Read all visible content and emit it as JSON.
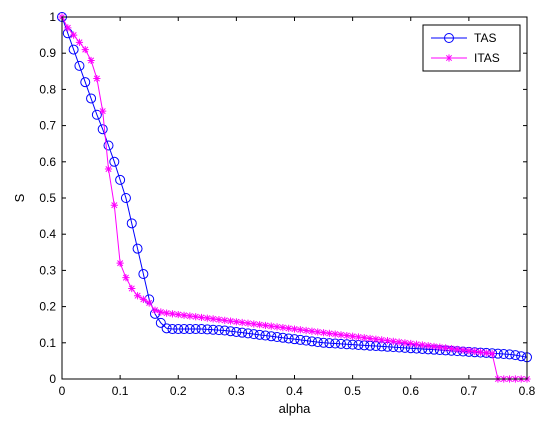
{
  "chart_data": {
    "type": "line",
    "title": "",
    "xlabel": "alpha",
    "ylabel": "S",
    "xlim": [
      0,
      0.8
    ],
    "ylim": [
      0,
      1
    ],
    "xticks": [
      "0",
      "0.1",
      "0.2",
      "0.3",
      "0.4",
      "0.5",
      "0.6",
      "0.7",
      "0.8"
    ],
    "yticks": [
      "0",
      "0.1",
      "0.2",
      "0.3",
      "0.4",
      "0.5",
      "0.6",
      "0.7",
      "0.8",
      "0.9",
      "1"
    ],
    "grid": false,
    "legend_position": "top-right",
    "series": [
      {
        "name": "TAS",
        "color": "#0000ff",
        "marker": "circle",
        "x": [
          0,
          0.01,
          0.02,
          0.03,
          0.04,
          0.05,
          0.06,
          0.07,
          0.08,
          0.09,
          0.1,
          0.11,
          0.12,
          0.13,
          0.14,
          0.15,
          0.16,
          0.17,
          0.18,
          0.19,
          0.2,
          0.21,
          0.22,
          0.23,
          0.24,
          0.25,
          0.26,
          0.27,
          0.28,
          0.29,
          0.3,
          0.31,
          0.32,
          0.33,
          0.34,
          0.35,
          0.36,
          0.37,
          0.38,
          0.39,
          0.4,
          0.41,
          0.42,
          0.43,
          0.44,
          0.45,
          0.46,
          0.47,
          0.48,
          0.49,
          0.5,
          0.51,
          0.52,
          0.53,
          0.54,
          0.55,
          0.56,
          0.57,
          0.58,
          0.59,
          0.6,
          0.61,
          0.62,
          0.63,
          0.64,
          0.65,
          0.66,
          0.67,
          0.68,
          0.69,
          0.7,
          0.71,
          0.72,
          0.73,
          0.74,
          0.75,
          0.76,
          0.77,
          0.78,
          0.79,
          0.8
        ],
        "y": [
          1.0,
          0.955,
          0.91,
          0.865,
          0.82,
          0.775,
          0.73,
          0.69,
          0.645,
          0.6,
          0.55,
          0.5,
          0.43,
          0.36,
          0.29,
          0.22,
          0.18,
          0.155,
          0.14,
          0.138,
          0.138,
          0.138,
          0.138,
          0.138,
          0.138,
          0.137,
          0.136,
          0.135,
          0.134,
          0.132,
          0.13,
          0.128,
          0.126,
          0.124,
          0.122,
          0.12,
          0.118,
          0.116,
          0.114,
          0.112,
          0.11,
          0.108,
          0.106,
          0.104,
          0.102,
          0.1,
          0.099,
          0.098,
          0.097,
          0.096,
          0.095,
          0.094,
          0.093,
          0.092,
          0.091,
          0.09,
          0.089,
          0.088,
          0.087,
          0.086,
          0.085,
          0.084,
          0.083,
          0.082,
          0.081,
          0.08,
          0.079,
          0.078,
          0.077,
          0.076,
          0.075,
          0.074,
          0.073,
          0.072,
          0.071,
          0.07,
          0.069,
          0.068,
          0.066,
          0.063,
          0.06
        ]
      },
      {
        "name": "ITAS",
        "color": "#ff00ff",
        "marker": "star",
        "x": [
          0,
          0.01,
          0.02,
          0.03,
          0.04,
          0.05,
          0.06,
          0.07,
          0.08,
          0.09,
          0.1,
          0.11,
          0.12,
          0.13,
          0.14,
          0.15,
          0.16,
          0.17,
          0.18,
          0.19,
          0.2,
          0.21,
          0.22,
          0.23,
          0.24,
          0.25,
          0.26,
          0.27,
          0.28,
          0.29,
          0.3,
          0.31,
          0.32,
          0.33,
          0.34,
          0.35,
          0.36,
          0.37,
          0.38,
          0.39,
          0.4,
          0.41,
          0.42,
          0.43,
          0.44,
          0.45,
          0.46,
          0.47,
          0.48,
          0.49,
          0.5,
          0.51,
          0.52,
          0.53,
          0.54,
          0.55,
          0.56,
          0.57,
          0.58,
          0.59,
          0.6,
          0.61,
          0.62,
          0.63,
          0.64,
          0.65,
          0.66,
          0.67,
          0.68,
          0.69,
          0.7,
          0.71,
          0.72,
          0.73,
          0.74,
          0.75,
          0.76,
          0.77,
          0.78,
          0.79,
          0.8
        ],
        "y": [
          1.0,
          0.97,
          0.95,
          0.93,
          0.91,
          0.88,
          0.83,
          0.74,
          0.58,
          0.48,
          0.32,
          0.28,
          0.25,
          0.23,
          0.22,
          0.21,
          0.19,
          0.185,
          0.182,
          0.18,
          0.178,
          0.176,
          0.174,
          0.172,
          0.17,
          0.168,
          0.166,
          0.164,
          0.162,
          0.16,
          0.158,
          0.156,
          0.154,
          0.152,
          0.15,
          0.148,
          0.146,
          0.144,
          0.142,
          0.14,
          0.138,
          0.136,
          0.134,
          0.132,
          0.13,
          0.128,
          0.126,
          0.124,
          0.122,
          0.12,
          0.118,
          0.116,
          0.114,
          0.112,
          0.11,
          0.108,
          0.106,
          0.104,
          0.102,
          0.1,
          0.098,
          0.096,
          0.094,
          0.092,
          0.09,
          0.088,
          0.086,
          0.084,
          0.082,
          0.08,
          0.078,
          0.076,
          0.074,
          0.072,
          0.07,
          0.0,
          0.0,
          0.0,
          0.0,
          0.0,
          0.0
        ]
      }
    ]
  }
}
